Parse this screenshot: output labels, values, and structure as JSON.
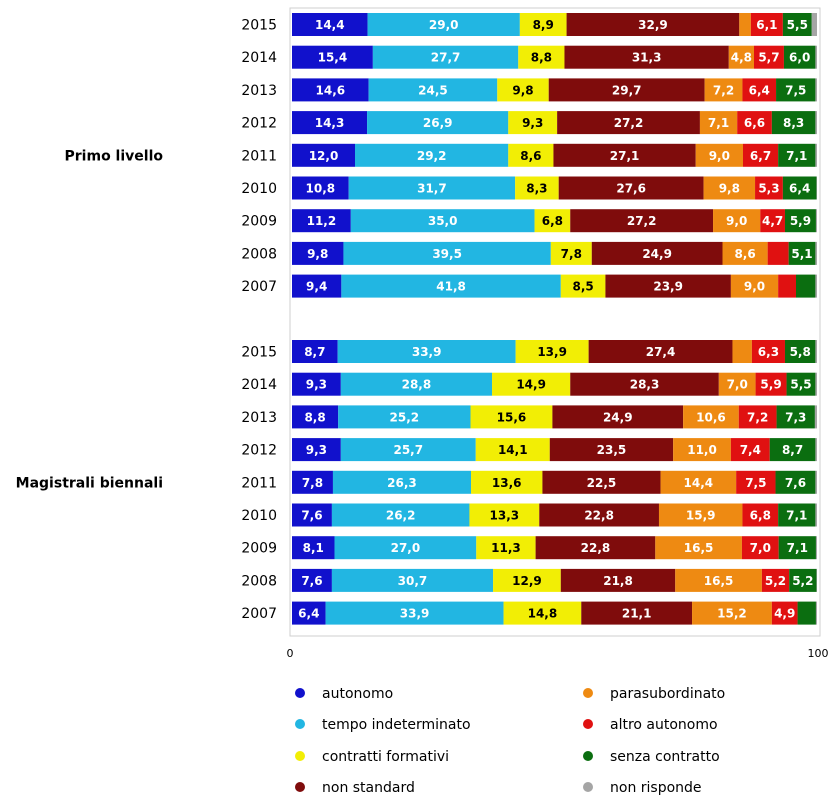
{
  "chart_data": {
    "type": "bar",
    "orientation": "horizontal",
    "stacked": true,
    "xlim": [
      0,
      100
    ],
    "x_ticks": [
      "0",
      "100"
    ],
    "groups": [
      {
        "label": "Primo livello",
        "years": [
          "2015",
          "2014",
          "2013",
          "2012",
          "2011",
          "2010",
          "2009",
          "2008",
          "2007"
        ],
        "values": [
          [
            14.4,
            29.0,
            8.9,
            32.9,
            2.2,
            6.1,
            5.5,
            1.0
          ],
          [
            15.4,
            27.7,
            8.8,
            31.3,
            4.8,
            5.7,
            6.0,
            0.3
          ],
          [
            14.6,
            24.5,
            9.8,
            29.7,
            7.2,
            6.4,
            7.5,
            0.3
          ],
          [
            14.3,
            26.9,
            9.3,
            27.2,
            7.1,
            6.6,
            8.3,
            0.3
          ],
          [
            12.0,
            29.2,
            8.6,
            27.1,
            9.0,
            6.7,
            7.1,
            0.3
          ],
          [
            10.8,
            31.7,
            8.3,
            27.6,
            9.8,
            5.3,
            6.4,
            0.1
          ],
          [
            11.2,
            35.0,
            6.8,
            27.2,
            9.0,
            4.7,
            5.9,
            0.2
          ],
          [
            9.8,
            39.5,
            7.8,
            24.9,
            8.6,
            4.0,
            5.1,
            0.3
          ],
          [
            9.4,
            41.8,
            8.5,
            23.9,
            9.0,
            3.4,
            3.7,
            0.3
          ]
        ],
        "labels": [
          [
            "14,4",
            "29,0",
            "8,9",
            "32,9",
            "",
            "6,1",
            "5,5",
            ""
          ],
          [
            "15,4",
            "27,7",
            "8,8",
            "31,3",
            "4,8",
            "5,7",
            "6,0",
            ""
          ],
          [
            "14,6",
            "24,5",
            "9,8",
            "29,7",
            "7,2",
            "6,4",
            "7,5",
            ""
          ],
          [
            "14,3",
            "26,9",
            "9,3",
            "27,2",
            "7,1",
            "6,6",
            "8,3",
            ""
          ],
          [
            "12,0",
            "29,2",
            "8,6",
            "27,1",
            "9,0",
            "6,7",
            "7,1",
            ""
          ],
          [
            "10,8",
            "31,7",
            "8,3",
            "27,6",
            "9,8",
            "5,3",
            "6,4",
            ""
          ],
          [
            "11,2",
            "35,0",
            "6,8",
            "27,2",
            "9,0",
            "4,7",
            "5,9",
            ""
          ],
          [
            "9,8",
            "39,5",
            "7,8",
            "24,9",
            "8,6",
            "",
            "5,1",
            ""
          ],
          [
            "9,4",
            "41,8",
            "8,5",
            "23,9",
            "9,0",
            "",
            "",
            ""
          ]
        ]
      },
      {
        "label": "Magistrali biennali",
        "years": [
          "2015",
          "2014",
          "2013",
          "2012",
          "2011",
          "2010",
          "2009",
          "2008",
          "2007"
        ],
        "values": [
          [
            8.7,
            33.9,
            13.9,
            27.4,
            3.7,
            6.3,
            5.8,
            0.3
          ],
          [
            9.3,
            28.8,
            14.9,
            28.3,
            7.0,
            5.9,
            5.5,
            0.3
          ],
          [
            8.8,
            25.2,
            15.6,
            24.9,
            10.6,
            7.2,
            7.3,
            0.4
          ],
          [
            9.3,
            25.7,
            14.1,
            23.5,
            11.0,
            7.4,
            8.7,
            0.3
          ],
          [
            7.8,
            26.3,
            13.6,
            22.5,
            14.4,
            7.5,
            7.6,
            0.3
          ],
          [
            7.6,
            26.2,
            13.3,
            22.8,
            15.9,
            6.8,
            7.1,
            0.3
          ],
          [
            8.1,
            27.0,
            11.3,
            22.8,
            16.5,
            7.0,
            7.1,
            0.2
          ],
          [
            7.6,
            30.7,
            12.9,
            21.8,
            16.5,
            5.2,
            5.2,
            0.1
          ],
          [
            6.4,
            33.9,
            14.8,
            21.1,
            15.2,
            4.9,
            3.5,
            0.2
          ]
        ],
        "labels": [
          [
            "8,7",
            "33,9",
            "13,9",
            "27,4",
            "",
            "6,3",
            "5,8",
            ""
          ],
          [
            "9,3",
            "28,8",
            "14,9",
            "28,3",
            "7,0",
            "5,9",
            "5,5",
            ""
          ],
          [
            "8,8",
            "25,2",
            "15,6",
            "24,9",
            "10,6",
            "7,2",
            "7,3",
            ""
          ],
          [
            "9,3",
            "25,7",
            "14,1",
            "23,5",
            "11,0",
            "7,4",
            "8,7",
            ""
          ],
          [
            "7,8",
            "26,3",
            "13,6",
            "22,5",
            "14,4",
            "7,5",
            "7,6",
            ""
          ],
          [
            "7,6",
            "26,2",
            "13,3",
            "22,8",
            "15,9",
            "6,8",
            "7,1",
            ""
          ],
          [
            "8,1",
            "27,0",
            "11,3",
            "22,8",
            "16,5",
            "7,0",
            "7,1",
            ""
          ],
          [
            "7,6",
            "30,7",
            "12,9",
            "21,8",
            "16,5",
            "5,2",
            "5,2",
            ""
          ],
          [
            "6,4",
            "33,9",
            "14,8",
            "21,1",
            "15,2",
            "4,9",
            "",
            ""
          ]
        ]
      }
    ],
    "series": [
      {
        "name": "autonomo",
        "color": "#1111cc",
        "dark_label": false
      },
      {
        "name": "tempo indeterminato",
        "color": "#22b6e2",
        "dark_label": false
      },
      {
        "name": "contratti formativi",
        "color": "#f2ee05",
        "dark_label": true
      },
      {
        "name": "non standard",
        "color": "#7f0c0c",
        "dark_label": false
      },
      {
        "name": "parasubordinato",
        "color": "#ee8a12",
        "dark_label": false
      },
      {
        "name": "altro autonomo",
        "color": "#e01111",
        "dark_label": false
      },
      {
        "name": "senza contratto",
        "color": "#0b6e10",
        "dark_label": false
      },
      {
        "name": "non risponde",
        "color": "#a5a5a5",
        "dark_label": false
      }
    ],
    "legend_position": "bottom",
    "grid": false
  }
}
